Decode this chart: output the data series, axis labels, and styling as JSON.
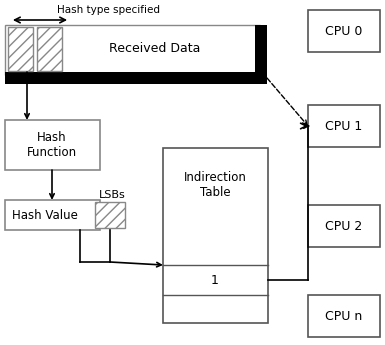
{
  "bg_color": "#ffffff",
  "hash_type_text": "Hash type specified",
  "received_data_text": "Received Data",
  "hash_function_text": "Hash\nFunction",
  "hash_value_text": "Hash Value",
  "lsbs_text": "LSBs",
  "indirection_table_text": "Indirection\nTable",
  "indirection_value": "1",
  "cpu_labels": [
    "CPU 0",
    "CPU 1",
    "CPU 2",
    "CPU n"
  ],
  "box_edge_color": "#888888",
  "cpu_edge_color": "#555555"
}
